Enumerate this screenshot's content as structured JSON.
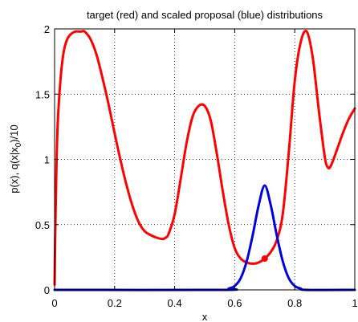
{
  "chart_data": {
    "type": "line",
    "title": "target (red) and scaled proposal (blue) distributions",
    "xlabel": "x",
    "ylabel": "p(x),  q(x|x",
    "ylabel_sub": "0",
    "ylabel_tail": ")/10",
    "xlim": [
      0,
      1
    ],
    "ylim": [
      0,
      2
    ],
    "xticks": [
      0,
      0.2,
      0.4,
      0.6,
      0.8,
      1
    ],
    "xtick_labels": [
      "0",
      "0.2",
      "0.4",
      "0.6",
      "0.8",
      "1"
    ],
    "yticks": [
      0,
      0.5,
      1,
      1.5,
      2
    ],
    "ytick_labels": [
      "0",
      "0.5",
      "1",
      "1.5",
      "2"
    ],
    "grid": true,
    "series": [
      {
        "color": "#ff0000",
        "x": [
          0,
          0.002,
          0.005,
          0.01,
          0.02,
          0.03,
          0.04,
          0.05,
          0.06,
          0.07,
          0.08,
          0.09,
          0.1,
          0.12,
          0.14,
          0.16,
          0.18,
          0.2,
          0.22,
          0.24,
          0.26,
          0.28,
          0.3,
          0.32,
          0.34,
          0.36,
          0.37,
          0.38,
          0.4,
          0.42,
          0.44,
          0.46,
          0.48,
          0.5,
          0.52,
          0.54,
          0.56,
          0.58,
          0.6,
          0.62,
          0.64,
          0.66,
          0.68,
          0.7,
          0.72,
          0.74,
          0.76,
          0.78,
          0.8,
          0.82,
          0.84,
          0.86,
          0.88,
          0.9,
          0.91,
          0.92,
          0.94,
          0.96,
          0.98,
          1.0
        ],
        "y": [
          0.04,
          0.4,
          0.8,
          1.25,
          1.62,
          1.82,
          1.91,
          1.95,
          1.97,
          1.98,
          1.98,
          1.98,
          1.98,
          1.92,
          1.8,
          1.62,
          1.42,
          1.2,
          0.99,
          0.8,
          0.64,
          0.52,
          0.45,
          0.42,
          0.4,
          0.39,
          0.4,
          0.43,
          0.58,
          0.85,
          1.13,
          1.33,
          1.41,
          1.41,
          1.3,
          1.05,
          0.76,
          0.5,
          0.32,
          0.24,
          0.21,
          0.2,
          0.21,
          0.24,
          0.29,
          0.38,
          0.58,
          1.05,
          1.6,
          1.9,
          1.98,
          1.78,
          1.38,
          1.02,
          0.94,
          0.95,
          1.07,
          1.2,
          1.31,
          1.39
        ]
      },
      {
        "color": "#0000dd",
        "x": [
          0,
          0.56,
          0.58,
          0.6,
          0.62,
          0.64,
          0.66,
          0.68,
          0.7,
          0.72,
          0.74,
          0.76,
          0.78,
          0.8,
          0.82,
          0.84,
          1.0
        ],
        "y": [
          0,
          0.0,
          0.01,
          0.03,
          0.09,
          0.22,
          0.42,
          0.65,
          0.8,
          0.65,
          0.42,
          0.22,
          0.09,
          0.03,
          0.01,
          0.0,
          0
        ]
      }
    ],
    "marker": {
      "x": 0.7,
      "y": 0.24,
      "color": "#ff0000"
    }
  }
}
